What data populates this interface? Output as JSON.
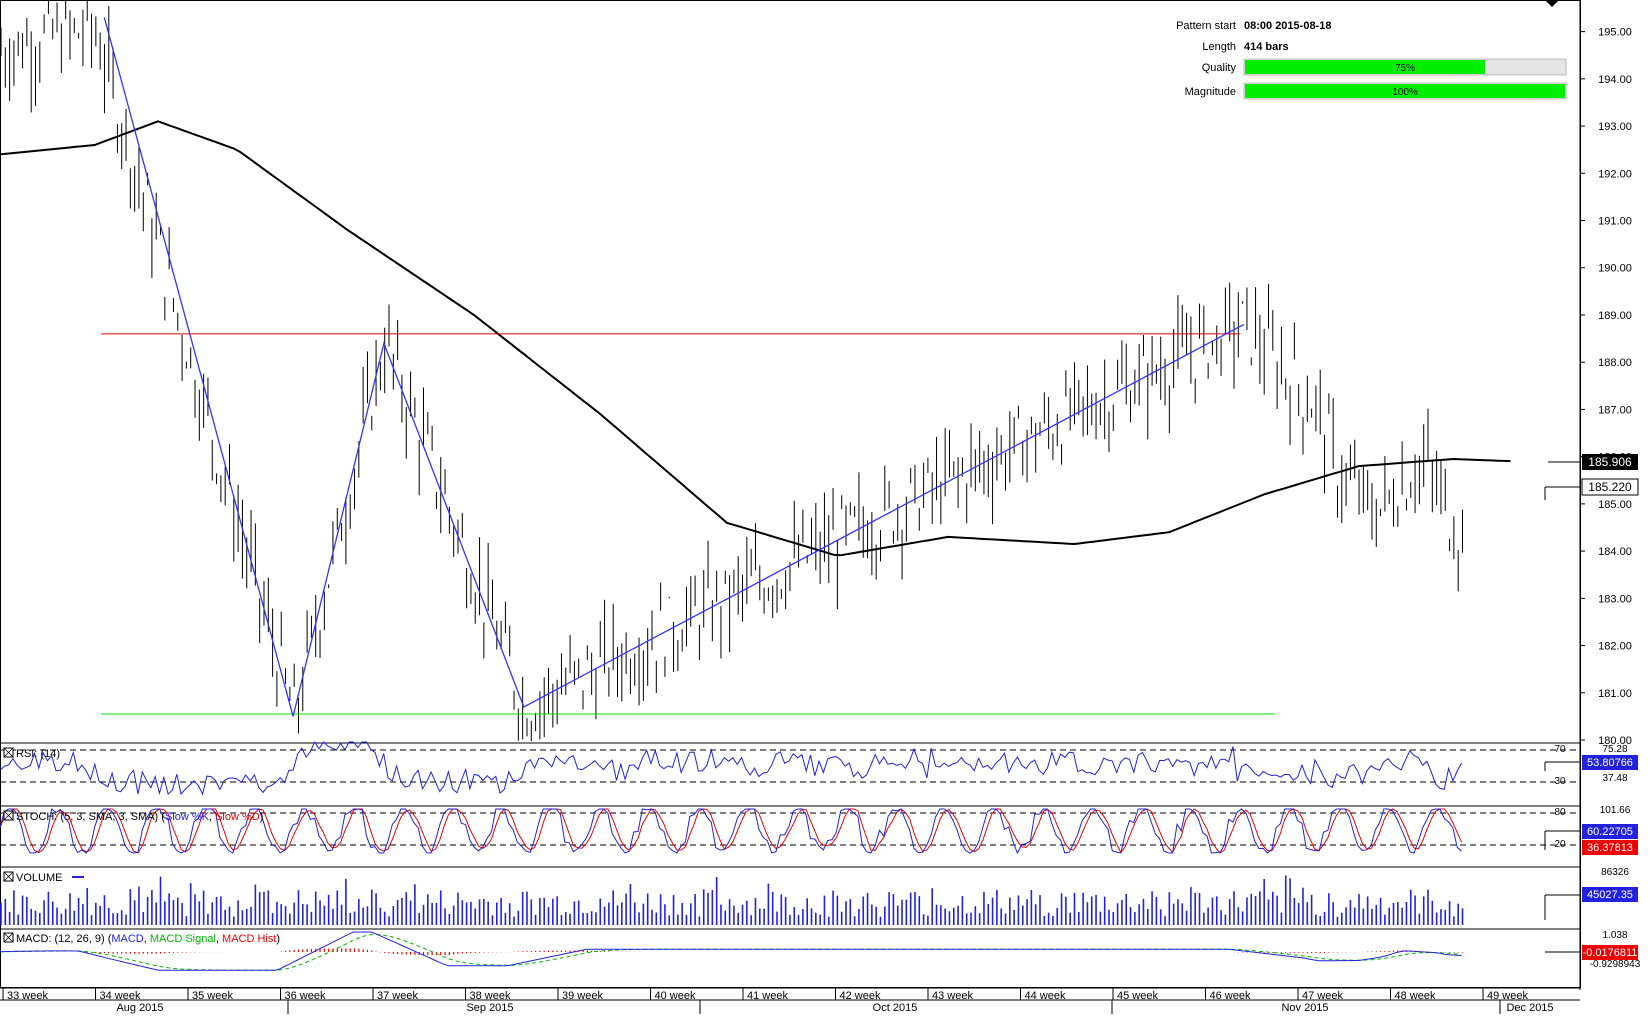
{
  "colors": {
    "price_bar": "#000000",
    "ma_line": "#000000",
    "pattern_line": "#3333ff",
    "resistance_line": "#dd0000",
    "support_line": "#00dd00",
    "rsi_line": "#2222dd",
    "stoch_k": "#2222dd",
    "stoch_d": "#ee0000",
    "volume_bar": "#2222dd",
    "macd_line": "#2222dd",
    "macd_signal": "#00bb00",
    "macd_hist": "#ee0000",
    "quality_fill": "#00ee00",
    "label_bg_blue": "#2222dd"
  },
  "info": {
    "pattern_start_label": "Pattern start",
    "pattern_start_value": "08:00 2015-08-18",
    "length_label": "Length",
    "length_value": "414 bars",
    "quality_label": "Quality",
    "quality_value": "75%",
    "quality_fraction": 0.75,
    "magnitude_label": "Magnitude",
    "magnitude_value": "100%",
    "magnitude_fraction": 1.0
  },
  "chart_data": {
    "type": "line",
    "main": {
      "y_ticks": [
        "195.00",
        "194.00",
        "193.00",
        "192.00",
        "191.00",
        "190.00",
        "189.00",
        "188.00",
        "187.00",
        "186.00",
        "185.00",
        "184.00",
        "183.00",
        "182.00",
        "181.00",
        "180.00"
      ],
      "ylim": [
        180,
        195.5
      ],
      "ma_label": "185.906",
      "last_price_label": "185.220",
      "ma_value": 185.906,
      "last_price": 185.22,
      "resistance": 188.6,
      "support": 180.55,
      "pattern_x_range": [
        0.06,
        0.8
      ],
      "pattern_points": [
        {
          "x": 0.0,
          "y": 195.3
        },
        {
          "x": 0.135,
          "y": 180.5
        },
        {
          "x": 0.2,
          "y": 188.4
        },
        {
          "x": 0.3,
          "y": 180.7
        },
        {
          "x": 0.815,
          "y": 188.8
        }
      ],
      "ma_points": [
        {
          "x": 0.0,
          "y": 192.4
        },
        {
          "x": 0.06,
          "y": 192.6
        },
        {
          "x": 0.1,
          "y": 193.1
        },
        {
          "x": 0.15,
          "y": 192.5
        },
        {
          "x": 0.22,
          "y": 190.8
        },
        {
          "x": 0.3,
          "y": 189.0
        },
        {
          "x": 0.38,
          "y": 186.9
        },
        {
          "x": 0.46,
          "y": 184.6
        },
        {
          "x": 0.53,
          "y": 183.9
        },
        {
          "x": 0.6,
          "y": 184.3
        },
        {
          "x": 0.68,
          "y": 184.15
        },
        {
          "x": 0.74,
          "y": 184.4
        },
        {
          "x": 0.8,
          "y": 185.2
        },
        {
          "x": 0.86,
          "y": 185.8
        },
        {
          "x": 0.92,
          "y": 185.95
        },
        {
          "x": 0.96,
          "y": 185.9
        }
      ]
    },
    "rsi": {
      "label": "RSI: (14)",
      "level_70": "70",
      "level_30": "30",
      "axis_labels": [
        "75.28",
        "37.48"
      ],
      "value_label": "53.80766",
      "value": 53.80766
    },
    "stoch": {
      "label_prefix": "STOCH: (5, 3, SMA, 3, SMA) (",
      "label_k": "Slow %K",
      "label_d": "Slow %D",
      "label_suffix": ")",
      "level_80": "80",
      "level_20": "20",
      "axis_labels": [
        "101.66"
      ],
      "k_label": "60.22705",
      "d_label": "36.37813",
      "k_value": 60.22705,
      "d_value": 36.37813
    },
    "volume": {
      "label": "VOLUME",
      "axis_labels": [
        "86326"
      ],
      "value_label": "45027.35",
      "value": 45027.35,
      "max": 86326
    },
    "macd": {
      "label_prefix": "MACD: (12, 26, 9) (",
      "label_macd": "MACD",
      "label_signal": "MACD Signal",
      "label_hist": "MACD Hist",
      "label_suffix": ")",
      "axis_labels": [
        "1.038",
        "-0.0176811",
        "-0.9298943"
      ],
      "value": -0.0176811
    },
    "x_axis": {
      "weeks": [
        "33 week",
        "34 week",
        "35 week",
        "36 week",
        "37 week",
        "38 week",
        "39 week",
        "40 week",
        "41 week",
        "42 week",
        "43 week",
        "44 week",
        "45 week",
        "46 week",
        "47 week",
        "48 week",
        "49 week"
      ],
      "months": [
        "Aug 2015",
        "Sep 2015",
        "Oct 2015",
        "Nov 2015",
        "Dec 2015"
      ]
    }
  }
}
